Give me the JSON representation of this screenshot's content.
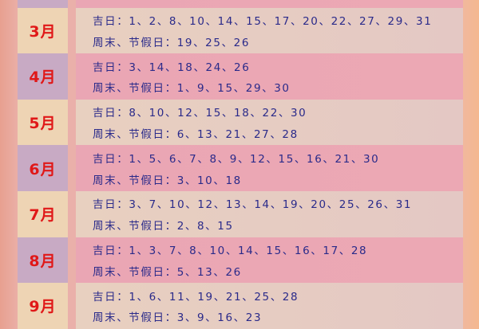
{
  "lucky_label": "吉日：",
  "holiday_label": "周末、节假日：",
  "months": [
    {
      "month": "",
      "lucky": "",
      "holiday": ""
    },
    {
      "month": "3月",
      "lucky": "1、2、8、10、14、15、17、20、22、27、29、31",
      "holiday": "19、25、26"
    },
    {
      "month": "4月",
      "lucky": "3、14、18、24、26",
      "holiday": "1、9、15、29、30"
    },
    {
      "month": "5月",
      "lucky": "8、10、12、15、18、22、30",
      "holiday": "6、13、21、27、28"
    },
    {
      "month": "6月",
      "lucky": "1、5、6、7、8、9、12、15、16、21、30",
      "holiday": "3、10、18"
    },
    {
      "month": "7月",
      "lucky": "3、7、10、12、13、14、19、20、25、26、31",
      "holiday": "2、8、15"
    },
    {
      "month": "8月",
      "lucky": "1、3、7、8、10、14、15、16、17、28",
      "holiday": "5、13、26"
    },
    {
      "month": "9月",
      "lucky": "1、6、11、19、21、25、28",
      "holiday": "3、9、16、23"
    }
  ],
  "colors": {
    "month_text": "#e01818",
    "body_text": "#2a2a8a",
    "row_cream": "#e8d0c0",
    "row_pink": "#eaa6b4"
  }
}
